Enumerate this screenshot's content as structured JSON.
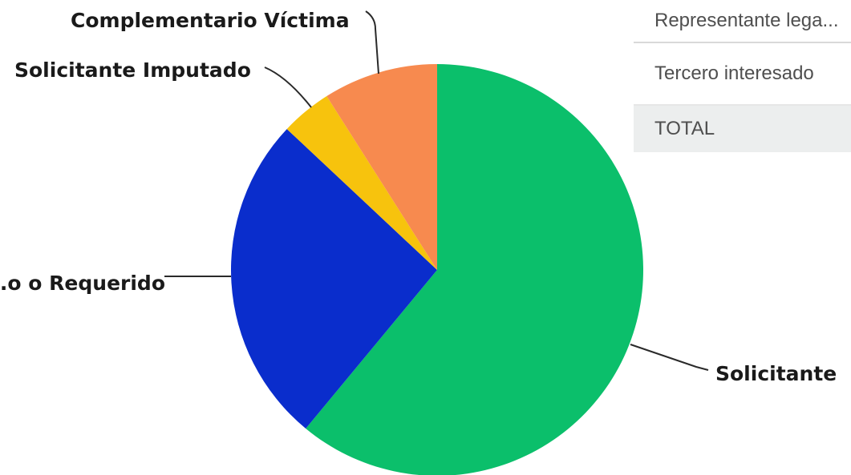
{
  "chart_data": {
    "type": "pie",
    "title": "",
    "slices": [
      {
        "label": "Solicitante",
        "value": 61,
        "color": "#0bbf6b"
      },
      {
        "label": "...o o Requerido",
        "value": 26,
        "color": "#0a2dcc"
      },
      {
        "label": "Solicitante Imputado",
        "value": 4,
        "color": "#f7c30d"
      },
      {
        "label": "Complementario Víctima",
        "value": 9,
        "color": "#f78a4f"
      }
    ],
    "start_angle_deg": 0,
    "direction": "clockwise",
    "labels_with_leader_lines": true
  },
  "table": {
    "rows": [
      {
        "label": "Representante lega..."
      },
      {
        "label": "Tercero interesado"
      },
      {
        "label": "TOTAL"
      }
    ]
  }
}
